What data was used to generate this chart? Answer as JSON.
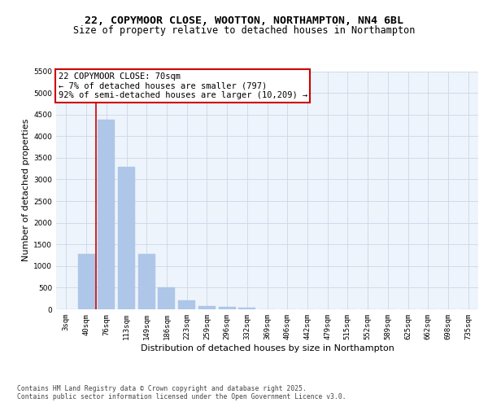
{
  "title_line1": "22, COPYMOOR CLOSE, WOOTTON, NORTHAMPTON, NN4 6BL",
  "title_line2": "Size of property relative to detached houses in Northampton",
  "xlabel": "Distribution of detached houses by size in Northampton",
  "ylabel": "Number of detached properties",
  "bin_labels": [
    "3sqm",
    "40sqm",
    "76sqm",
    "113sqm",
    "149sqm",
    "186sqm",
    "223sqm",
    "259sqm",
    "296sqm",
    "332sqm",
    "369sqm",
    "406sqm",
    "442sqm",
    "479sqm",
    "515sqm",
    "552sqm",
    "589sqm",
    "625sqm",
    "662sqm",
    "698sqm",
    "735sqm"
  ],
  "bar_values": [
    0,
    1270,
    4380,
    3300,
    1280,
    500,
    200,
    80,
    50,
    30,
    0,
    0,
    0,
    0,
    0,
    0,
    0,
    0,
    0,
    0,
    0
  ],
  "bar_color": "#aec6e8",
  "bar_edge_color": "#aec6e8",
  "vline_x": 1.5,
  "vline_color": "#cc0000",
  "annotation_text": "22 COPYMOOR CLOSE: 70sqm\n← 7% of detached houses are smaller (797)\n92% of semi-detached houses are larger (10,209) →",
  "annotation_box_color": "#cc0000",
  "ylim": [
    0,
    5500
  ],
  "yticks": [
    0,
    500,
    1000,
    1500,
    2000,
    2500,
    3000,
    3500,
    4000,
    4500,
    5000,
    5500
  ],
  "grid_color": "#c8d8e8",
  "background_color": "#eef4fb",
  "footer_line1": "Contains HM Land Registry data © Crown copyright and database right 2025.",
  "footer_line2": "Contains public sector information licensed under the Open Government Licence v3.0.",
  "title_fontsize": 9.5,
  "subtitle_fontsize": 8.5,
  "tick_fontsize": 6.5,
  "ylabel_fontsize": 8,
  "xlabel_fontsize": 8,
  "footer_fontsize": 5.8,
  "annotation_fontsize": 7.5
}
